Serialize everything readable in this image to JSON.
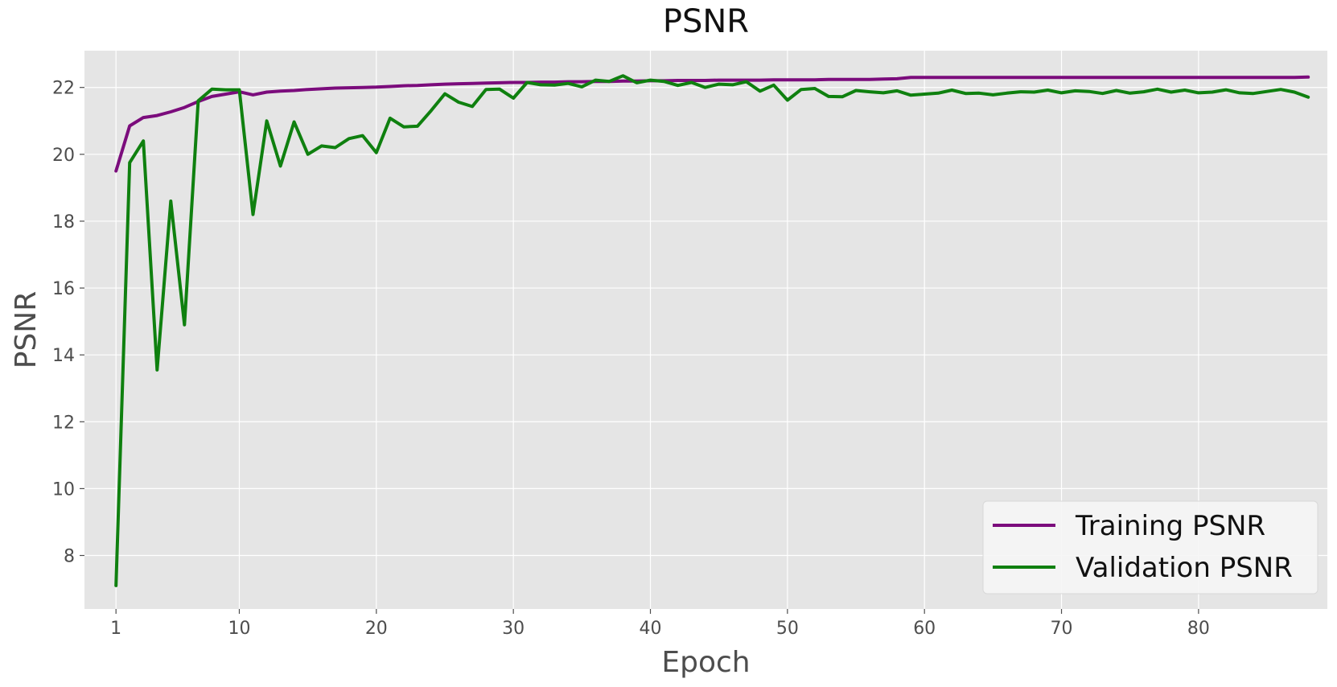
{
  "chart_data": {
    "type": "line",
    "title": "PSNR",
    "xlabel": "Epoch",
    "ylabel": "PSNR",
    "xlim": [
      -1.3,
      89.4
    ],
    "ylim": [
      6.4,
      23.1
    ],
    "grid": true,
    "legend": {
      "position": "bottom-right"
    },
    "x_ticks": [
      1,
      10,
      20,
      30,
      40,
      50,
      60,
      70,
      80
    ],
    "y_ticks": [
      8,
      10,
      12,
      14,
      16,
      18,
      20,
      22
    ],
    "x": [
      1,
      2,
      3,
      4,
      5,
      6,
      7,
      8,
      9,
      10,
      11,
      12,
      13,
      14,
      15,
      16,
      17,
      18,
      19,
      20,
      21,
      22,
      23,
      24,
      25,
      26,
      27,
      28,
      29,
      30,
      31,
      32,
      33,
      34,
      35,
      36,
      37,
      38,
      39,
      40,
      41,
      42,
      43,
      44,
      45,
      46,
      47,
      48,
      49,
      50,
      51,
      52,
      53,
      54,
      55,
      56,
      57,
      58,
      59,
      60,
      61,
      62,
      63,
      64,
      65,
      66,
      67,
      68,
      69,
      70,
      71,
      72,
      73,
      74,
      75,
      76,
      77,
      78,
      79,
      80,
      81,
      82,
      83,
      84,
      85,
      86,
      87,
      88
    ],
    "series": [
      {
        "name": "Training PSNR",
        "color": "#7b0c7c",
        "values": [
          19.5,
          20.85,
          21.1,
          21.16,
          21.27,
          21.4,
          21.58,
          21.73,
          21.8,
          21.87,
          21.78,
          21.86,
          21.89,
          21.91,
          21.94,
          21.96,
          21.98,
          21.99,
          22.0,
          22.01,
          22.03,
          22.05,
          22.06,
          22.08,
          22.1,
          22.11,
          22.12,
          22.13,
          22.14,
          22.15,
          22.15,
          22.16,
          22.16,
          22.17,
          22.17,
          22.18,
          22.18,
          22.19,
          22.19,
          22.2,
          22.2,
          22.21,
          22.21,
          22.21,
          22.22,
          22.22,
          22.22,
          22.22,
          22.23,
          22.23,
          22.23,
          22.23,
          22.24,
          22.24,
          22.24,
          22.24,
          22.25,
          22.26,
          22.3,
          22.3,
          22.3,
          22.3,
          22.3,
          22.3,
          22.3,
          22.3,
          22.3,
          22.3,
          22.3,
          22.3,
          22.3,
          22.3,
          22.3,
          22.3,
          22.3,
          22.3,
          22.3,
          22.3,
          22.3,
          22.3,
          22.3,
          22.3,
          22.3,
          22.3,
          22.3,
          22.3,
          22.3,
          22.31
        ]
      },
      {
        "name": "Validation PSNR",
        "color": "#0f800f",
        "values": [
          7.1,
          19.75,
          20.4,
          13.55,
          18.6,
          14.9,
          21.6,
          21.95,
          21.93,
          21.93,
          18.2,
          21.0,
          19.65,
          20.97,
          20.0,
          20.25,
          20.2,
          20.47,
          20.56,
          20.05,
          21.08,
          20.82,
          20.84,
          21.31,
          21.81,
          21.56,
          21.43,
          21.94,
          21.95,
          21.68,
          22.15,
          22.08,
          22.07,
          22.12,
          22.02,
          22.22,
          22.18,
          22.35,
          22.14,
          22.22,
          22.18,
          22.06,
          22.15,
          22.0,
          22.1,
          22.08,
          22.17,
          21.89,
          22.07,
          21.62,
          21.94,
          21.97,
          21.73,
          21.72,
          21.91,
          21.87,
          21.84,
          21.9,
          21.77,
          21.8,
          21.83,
          21.92,
          21.82,
          21.83,
          21.78,
          21.83,
          21.87,
          21.86,
          21.92,
          21.84,
          21.9,
          21.88,
          21.82,
          21.91,
          21.83,
          21.87,
          21.95,
          21.86,
          21.92,
          21.84,
          21.86,
          21.93,
          21.84,
          21.82,
          21.88,
          21.94,
          21.86,
          21.71
        ]
      }
    ]
  }
}
